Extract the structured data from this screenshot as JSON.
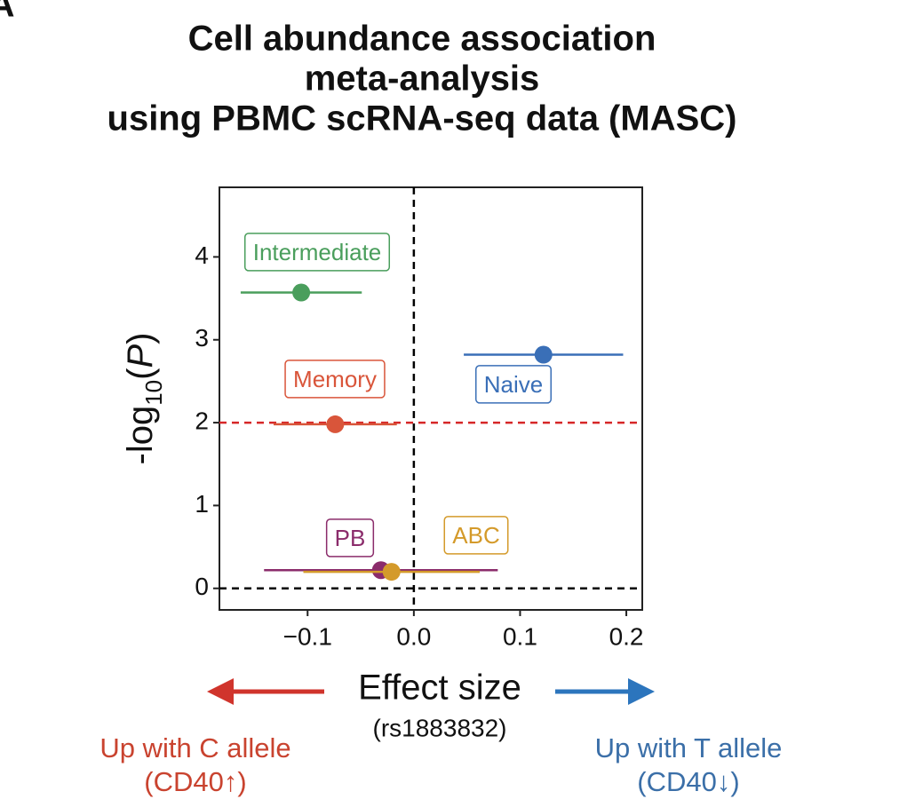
{
  "chart_data": {
    "type": "forest",
    "panel_label": "A",
    "title": [
      "Cell abundance association",
      "meta-analysis",
      "using PBMC scRNA-seq data (MASC)"
    ],
    "ylabel_parts": [
      {
        "text": "-log"
      },
      {
        "text": "10",
        "style": "sub"
      },
      {
        "text": "("
      },
      {
        "text": "P",
        "style": "italic"
      },
      {
        "text": ")"
      }
    ],
    "xlabel": "Effect size",
    "xlabel_sub": "(rs1883832)",
    "xlim": [
      -0.183,
      0.215
    ],
    "ylim": [
      -0.26,
      4.84
    ],
    "xticks": [
      {
        "value": -0.1,
        "label": "−0.1"
      },
      {
        "value": 0,
        "label": "0.0"
      },
      0.1,
      0.2
    ],
    "yticks": [
      0,
      1,
      2,
      3,
      4
    ],
    "reference_lines": [
      {
        "axis": "y",
        "value": 2,
        "color": "#d62728"
      },
      {
        "axis": "y",
        "value": 0,
        "color": "#000000"
      },
      {
        "axis": "x",
        "value": 0,
        "color": "#000000"
      }
    ],
    "series": [
      {
        "name": "Intermediate",
        "color": "#4a9e5c",
        "x": [
          -0.106
        ],
        "values": [
          3.57
        ],
        "xerr": [
          0.057
        ]
      },
      {
        "name": "Naive",
        "color": "#3a6fb7",
        "x": [
          0.122
        ],
        "values": [
          2.82
        ],
        "xerr": [
          0.075
        ]
      },
      {
        "name": "Memory",
        "color": "#d9553a",
        "x": [
          -0.074
        ],
        "values": [
          1.98
        ],
        "xerr": [
          0.058
        ]
      },
      {
        "name": "PB",
        "color": "#8b2c6b",
        "x": [
          -0.031
        ],
        "values": [
          0.22
        ],
        "xerr": [
          0.11
        ]
      },
      {
        "name": "ABC",
        "color": "#d49a2a",
        "x": [
          -0.021
        ],
        "values": [
          0.2
        ],
        "xerr": [
          0.083
        ]
      }
    ],
    "annotations": [
      {
        "lines": [
          "Up with C allele",
          "(CD40↑)"
        ],
        "color": "#c9432f"
      },
      {
        "lines": [
          "Up with T allele",
          "(CD40↓)"
        ],
        "color": "#3b6fa8"
      }
    ]
  }
}
